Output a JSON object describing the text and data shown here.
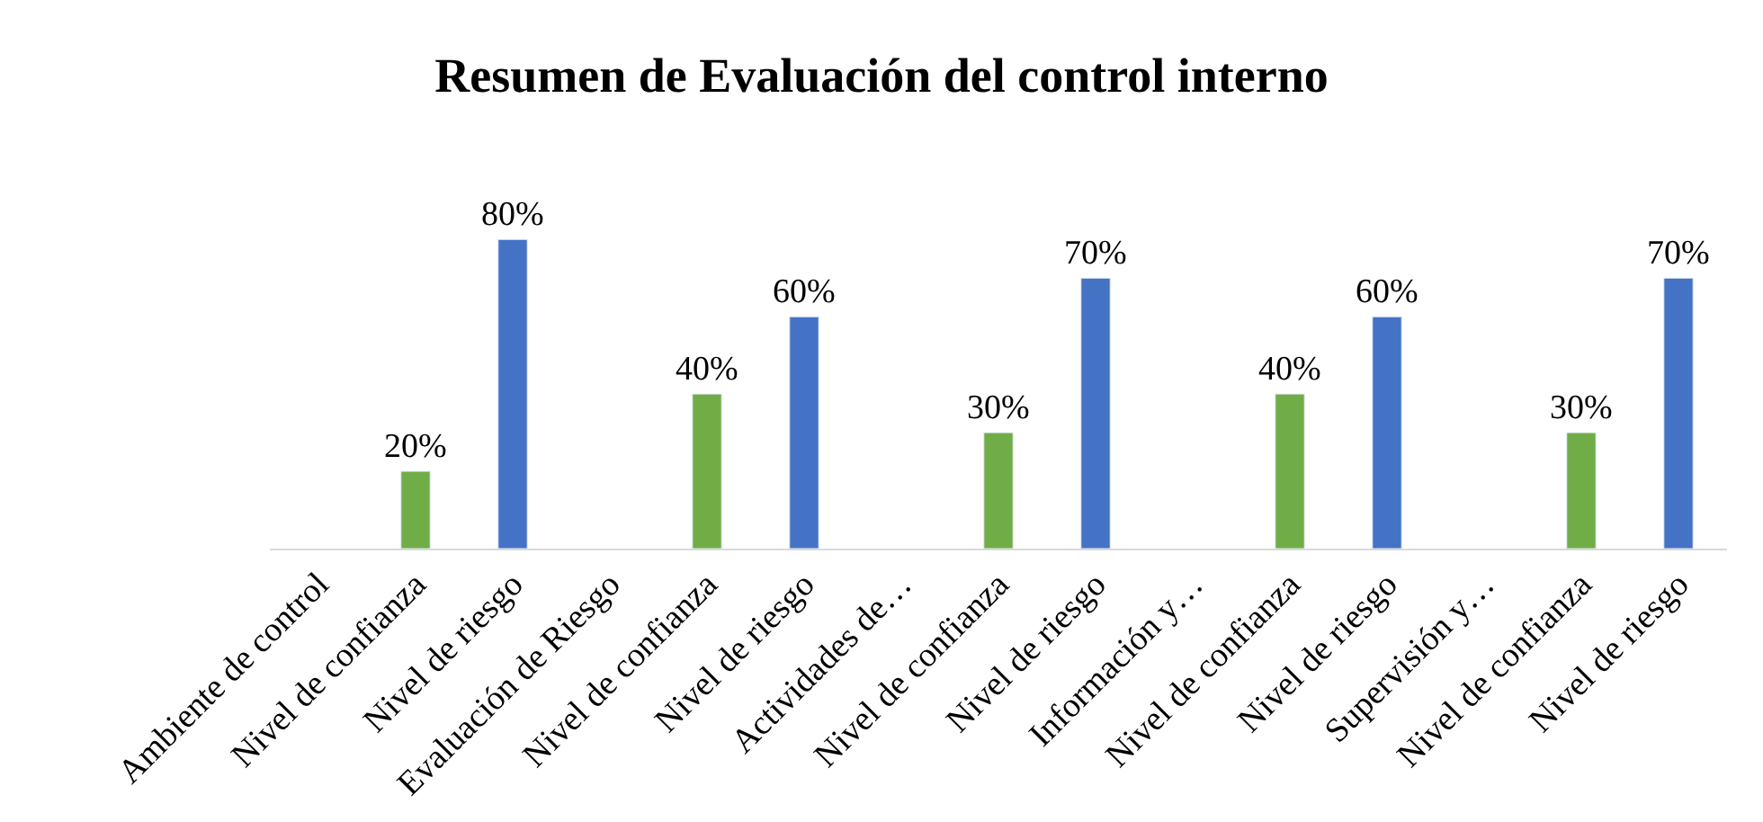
{
  "chart_data": {
    "type": "bar",
    "title": "Resumen de Evaluación del control interno",
    "categories": [
      "Ambiente de control",
      "Nivel de confianza",
      "Nivel de riesgo",
      "Evaluación de Riesgo",
      "Nivel de confianza",
      "Nivel de riesgo",
      "Actividades de…",
      "Nivel de confianza",
      "Nivel de riesgo",
      "Información y…",
      "Nivel de confianza",
      "Nivel de riesgo",
      "Supervisión y…",
      "Nivel de confianza",
      "Nivel de riesgo"
    ],
    "values": [
      null,
      20,
      80,
      null,
      40,
      60,
      null,
      30,
      70,
      null,
      40,
      60,
      null,
      30,
      70
    ],
    "colors": [
      "#70ad47",
      "#70ad47",
      "#4472c4",
      "#70ad47",
      "#70ad47",
      "#4472c4",
      "#70ad47",
      "#70ad47",
      "#4472c4",
      "#70ad47",
      "#70ad47",
      "#4472c4",
      "#70ad47",
      "#70ad47",
      "#4472c4"
    ],
    "value_labels": [
      null,
      "20%",
      "80%",
      null,
      "40%",
      "60%",
      null,
      "30%",
      "70%",
      null,
      "40%",
      "60%",
      null,
      "30%",
      "70%"
    ],
    "legend": false
  }
}
